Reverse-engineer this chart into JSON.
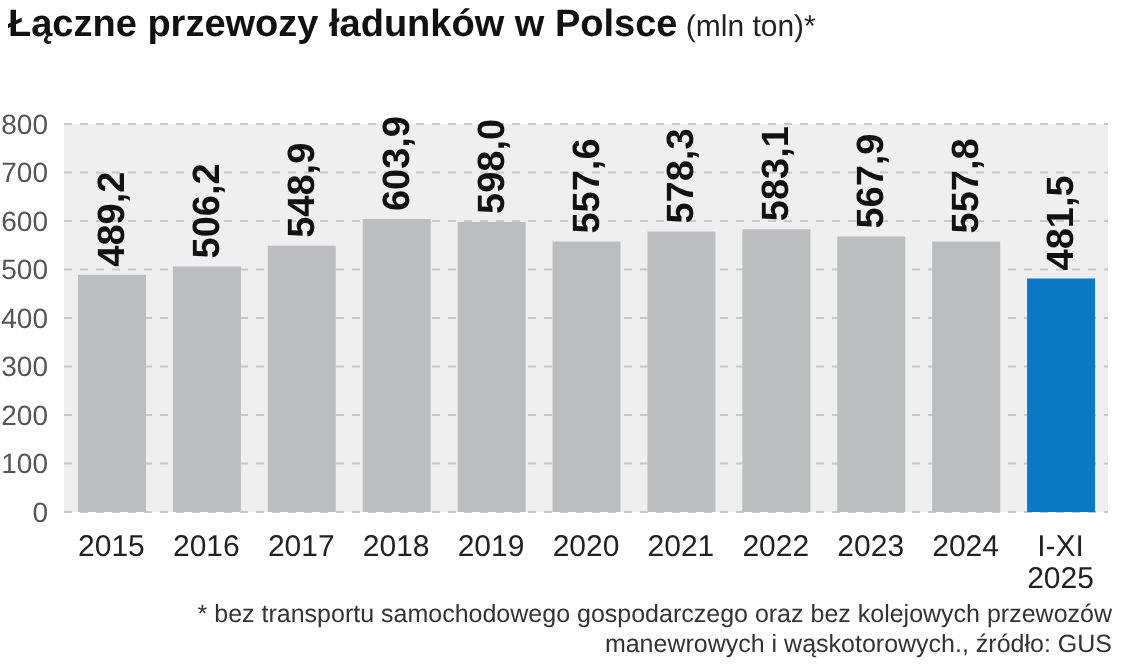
{
  "chart_data": {
    "type": "bar",
    "title": "Łączne przewozy ładunków w Polsce",
    "subtitle": "(mln ton)*",
    "categories": [
      "2015",
      "2016",
      "2017",
      "2018",
      "2019",
      "2020",
      "2021",
      "2022",
      "2023",
      "2024",
      "I-XI 2025"
    ],
    "values": [
      489.2,
      506.2,
      548.9,
      603.9,
      598.0,
      557.6,
      578.3,
      583.1,
      567.9,
      557.8,
      481.5
    ],
    "value_labels": [
      "489,2",
      "506,2",
      "548,9",
      "603,9",
      "598,0",
      "557,6",
      "578,3",
      "583,1",
      "567,9",
      "557,8",
      "481,5"
    ],
    "colors": [
      "#bcbdc0",
      "#bcbdc0",
      "#bcbdc0",
      "#bcbdc0",
      "#bcbdc0",
      "#bcbdc0",
      "#bcbdc0",
      "#bcbdc0",
      "#bcbdc0",
      "#bcbdc0",
      "#0a7ac4"
    ],
    "ylim": [
      0,
      800
    ],
    "yticks": [
      0,
      100,
      200,
      300,
      400,
      500,
      600,
      700,
      800
    ],
    "grid": "y",
    "annotations": [
      "* bez transportu samochodowego gospodarczego oraz bez kolejowych przewozów manewrowych i wąskotorowych., źródło: GUS"
    ]
  }
}
